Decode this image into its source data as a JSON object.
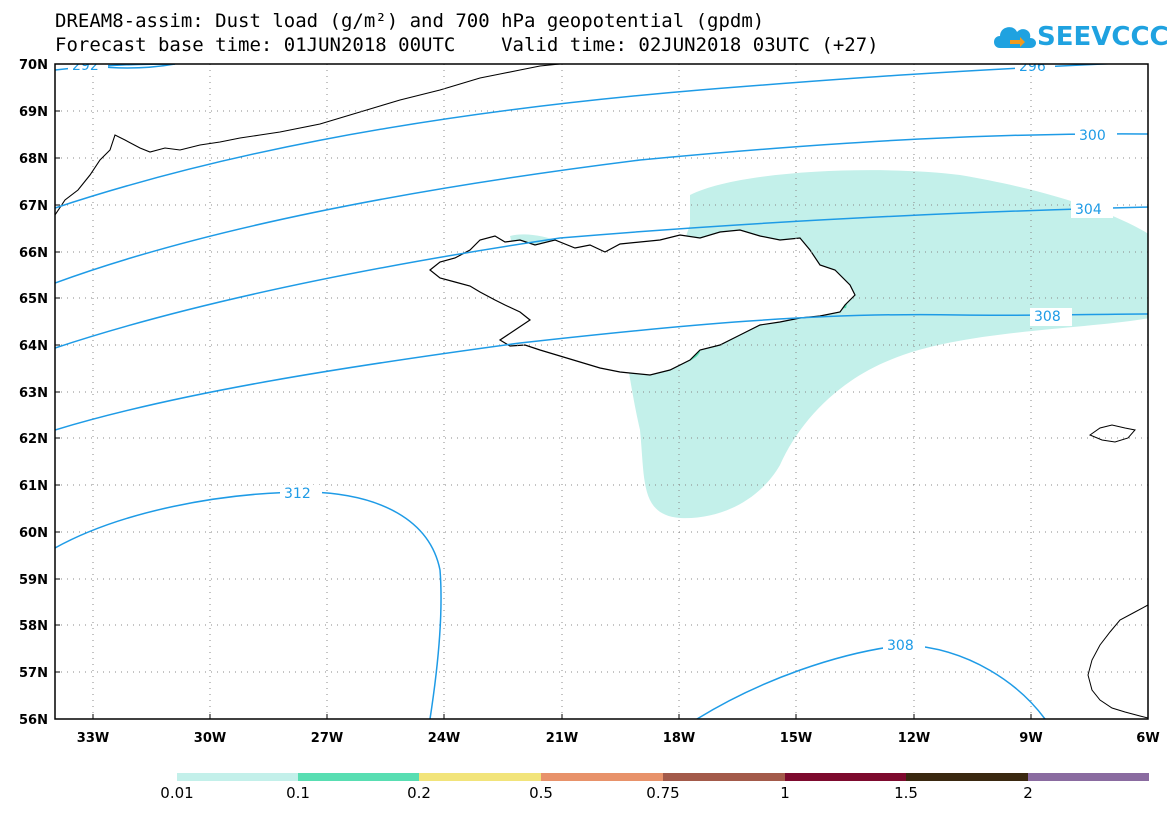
{
  "title": {
    "line1": "DREAM8-assim: Dust load (g/m²) and 700 hPa geopotential (gpdm)",
    "line2": "Forecast base time: 01JUN2018 00UTC    Valid time: 02JUN2018 03UTC (+27)"
  },
  "logo": {
    "text": "SEEVCCC",
    "icon": "cloud-icon",
    "color": "#1fa2e0"
  },
  "map": {
    "lon_range": [
      -34.0,
      -6.0
    ],
    "lat_range": [
      56.0,
      70.0
    ],
    "lat_labels": [
      "70N",
      "69N",
      "68N",
      "67N",
      "66N",
      "65N",
      "64N",
      "63N",
      "62N",
      "61N",
      "60N",
      "59N",
      "58N",
      "57N",
      "56N"
    ],
    "lon_labels": [
      "33W",
      "30W",
      "27W",
      "24W",
      "21W",
      "18W",
      "15W",
      "12W",
      "9W",
      "6W"
    ],
    "contour_color": "#1e9be6",
    "contour_labels": [
      "292",
      "296",
      "300",
      "304",
      "308",
      "312",
      "308"
    ]
  },
  "colorbar": {
    "colors": [
      "#c3f0ea",
      "#58deb2",
      "#f2e47a",
      "#e8926a",
      "#a35a4a",
      "#7d0a2e",
      "#3a2810",
      "#8a6ba0"
    ],
    "labels": [
      "0.01",
      "0.1",
      "0.2",
      "0.5",
      "0.75",
      "1",
      "1.5",
      "2"
    ]
  }
}
